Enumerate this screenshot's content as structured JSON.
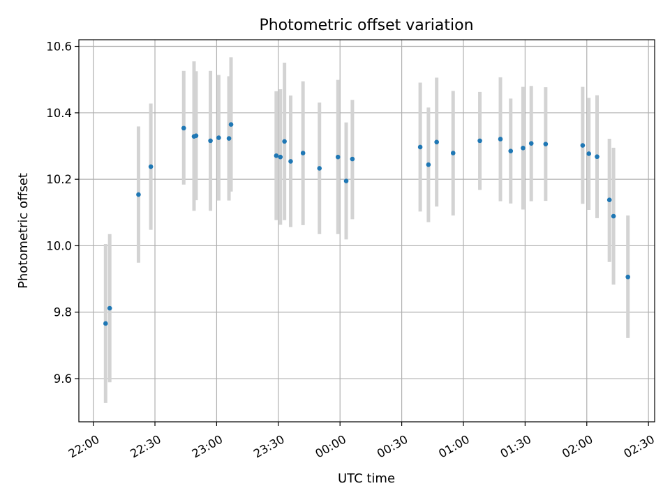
{
  "chart_data": {
    "type": "scatter",
    "title": "Photometric offset variation",
    "xlabel": "UTC time",
    "ylabel": "Photometric offset",
    "grid": true,
    "x_unit": "UTC time (hh:mm)",
    "xlim": [
      "21:53",
      "02:33"
    ],
    "ylim": [
      9.47,
      10.62
    ],
    "x_ticks": [
      "22:00",
      "22:30",
      "23:00",
      "23:30",
      "00:00",
      "00:30",
      "01:00",
      "01:30",
      "02:00",
      "02:30"
    ],
    "y_ticks": [
      "9.6",
      "9.8",
      "10.0",
      "10.2",
      "10.4",
      "10.6"
    ],
    "colors": {
      "point": "#1f77b4",
      "errorbar": "#d3d3d3",
      "grid": "#b0b0b0"
    },
    "points": [
      {
        "x": "22:06",
        "y": 9.766,
        "lo": 9.527,
        "hi": 10.005
      },
      {
        "x": "22:08",
        "y": 9.812,
        "lo": 9.589,
        "hi": 10.035
      },
      {
        "x": "22:22",
        "y": 10.154,
        "lo": 9.949,
        "hi": 10.359
      },
      {
        "x": "22:28",
        "y": 10.238,
        "lo": 10.048,
        "hi": 10.428
      },
      {
        "x": "22:44",
        "y": 10.354,
        "lo": 10.184,
        "hi": 10.526
      },
      {
        "x": "22:49",
        "y": 10.329,
        "lo": 10.105,
        "hi": 10.555
      },
      {
        "x": "22:50",
        "y": 10.331,
        "lo": 10.137,
        "hi": 10.525
      },
      {
        "x": "22:57",
        "y": 10.316,
        "lo": 10.105,
        "hi": 10.526
      },
      {
        "x": "23:01",
        "y": 10.325,
        "lo": 10.136,
        "hi": 10.514
      },
      {
        "x": "23:06",
        "y": 10.323,
        "lo": 10.136,
        "hi": 10.51
      },
      {
        "x": "23:07",
        "y": 10.365,
        "lo": 10.163,
        "hi": 10.567
      },
      {
        "x": "23:29",
        "y": 10.271,
        "lo": 10.077,
        "hi": 10.465
      },
      {
        "x": "23:31",
        "y": 10.267,
        "lo": 10.063,
        "hi": 10.471
      },
      {
        "x": "23:33",
        "y": 10.314,
        "lo": 10.077,
        "hi": 10.551
      },
      {
        "x": "23:36",
        "y": 10.254,
        "lo": 10.056,
        "hi": 10.452
      },
      {
        "x": "23:42",
        "y": 10.279,
        "lo": 10.062,
        "hi": 10.495
      },
      {
        "x": "23:50",
        "y": 10.233,
        "lo": 10.035,
        "hi": 10.431
      },
      {
        "x": "23:59",
        "y": 10.267,
        "lo": 10.035,
        "hi": 10.499
      },
      {
        "x": "00:03",
        "y": 10.195,
        "lo": 10.019,
        "hi": 10.371
      },
      {
        "x": "00:06",
        "y": 10.261,
        "lo": 10.08,
        "hi": 10.439
      },
      {
        "x": "00:39",
        "y": 10.297,
        "lo": 10.103,
        "hi": 10.491
      },
      {
        "x": "00:43",
        "y": 10.244,
        "lo": 10.071,
        "hi": 10.416
      },
      {
        "x": "00:47",
        "y": 10.312,
        "lo": 10.118,
        "hi": 10.506
      },
      {
        "x": "00:55",
        "y": 10.279,
        "lo": 10.091,
        "hi": 10.466
      },
      {
        "x": "01:08",
        "y": 10.316,
        "lo": 10.168,
        "hi": 10.463
      },
      {
        "x": "01:18",
        "y": 10.321,
        "lo": 10.134,
        "hi": 10.507
      },
      {
        "x": "01:23",
        "y": 10.285,
        "lo": 10.127,
        "hi": 10.443
      },
      {
        "x": "01:29",
        "y": 10.294,
        "lo": 10.109,
        "hi": 10.478
      },
      {
        "x": "01:33",
        "y": 10.308,
        "lo": 10.134,
        "hi": 10.481
      },
      {
        "x": "01:40",
        "y": 10.306,
        "lo": 10.135,
        "hi": 10.477
      },
      {
        "x": "01:58",
        "y": 10.302,
        "lo": 10.126,
        "hi": 10.478
      },
      {
        "x": "02:01",
        "y": 10.277,
        "lo": 10.108,
        "hi": 10.445
      },
      {
        "x": "02:05",
        "y": 10.268,
        "lo": 10.083,
        "hi": 10.453
      },
      {
        "x": "02:11",
        "y": 10.138,
        "lo": 9.951,
        "hi": 10.322
      },
      {
        "x": "02:13",
        "y": 10.089,
        "lo": 9.883,
        "hi": 10.295
      },
      {
        "x": "02:20",
        "y": 9.906,
        "lo": 9.722,
        "hi": 10.091
      }
    ]
  }
}
